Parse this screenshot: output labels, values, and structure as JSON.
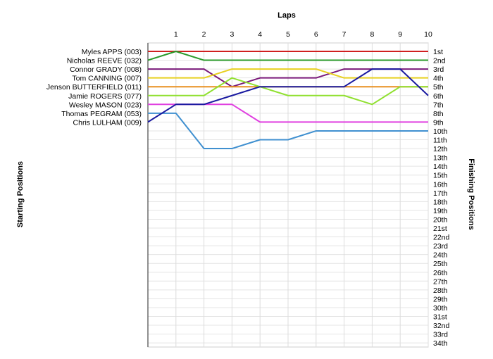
{
  "chart_data": {
    "type": "line",
    "title": "",
    "xlabel": "Laps",
    "ylabel_left": "Starting Positions",
    "ylabel_right": "Finishing Positions",
    "x": [
      0,
      1,
      2,
      3,
      4,
      5,
      6,
      7,
      8,
      9,
      10
    ],
    "x_tick_labels": [
      "1",
      "2",
      "3",
      "4",
      "5",
      "6",
      "7",
      "8",
      "9",
      "10"
    ],
    "y_range": [
      1,
      34
    ],
    "y_inverted": true,
    "grid": true,
    "finishing_labels": [
      "1st",
      "2nd",
      "3rd",
      "4th",
      "5th",
      "6th",
      "7th",
      "8th",
      "9th",
      "10th",
      "11th",
      "12th",
      "13th",
      "14th",
      "15th",
      "16th",
      "17th",
      "18th",
      "19th",
      "20th",
      "21st",
      "22nd",
      "23rd",
      "24th",
      "25th",
      "26th",
      "27th",
      "28th",
      "29th",
      "30th",
      "31st",
      "32nd",
      "33rd",
      "34th"
    ],
    "series": [
      {
        "name": "Myles APPS (003)",
        "color": "#d02020",
        "values": [
          1,
          1,
          1,
          1,
          1,
          1,
          1,
          1,
          1,
          1,
          1
        ]
      },
      {
        "name": "Nicholas REEVE (032)",
        "color": "#2a9a2a",
        "values": [
          2,
          1,
          2,
          2,
          2,
          2,
          2,
          2,
          2,
          2,
          2
        ]
      },
      {
        "name": "Connor GRADY (008)",
        "color": "#7a1a7a",
        "values": [
          3,
          3,
          3,
          5,
          4,
          4,
          4,
          3,
          3,
          3,
          3
        ]
      },
      {
        "name": "Tom CANNING (007)",
        "color": "#e8d020",
        "values": [
          4,
          4,
          4,
          3,
          3,
          3,
          3,
          4,
          4,
          4,
          4
        ]
      },
      {
        "name": "Jenson BUTTERFIELD (011)",
        "color": "#e89020",
        "values": [
          5,
          5,
          5,
          5,
          5,
          5,
          5,
          5,
          5,
          5,
          5
        ]
      },
      {
        "name": "Jamie ROGERS (077)",
        "color": "#90e030",
        "values": [
          6,
          6,
          6,
          4,
          5,
          6,
          6,
          6,
          7,
          5,
          5
        ]
      },
      {
        "name": "Wesley MASON (023)",
        "color": "#e040e0",
        "values": [
          7,
          7,
          7,
          7,
          9,
          9,
          9,
          9,
          9,
          9,
          9
        ]
      },
      {
        "name": "Thomas PEGRAM (053)",
        "color": "#4090d0",
        "values": [
          8,
          8,
          12,
          12,
          11,
          11,
          10,
          10,
          10,
          10,
          10
        ]
      },
      {
        "name": "Chris LULHAM (009)",
        "color": "#1a1aa0",
        "values": [
          9,
          7,
          7,
          6,
          5,
          5,
          5,
          5,
          3,
          3,
          6
        ]
      }
    ],
    "legend": "left and right axis labels"
  }
}
